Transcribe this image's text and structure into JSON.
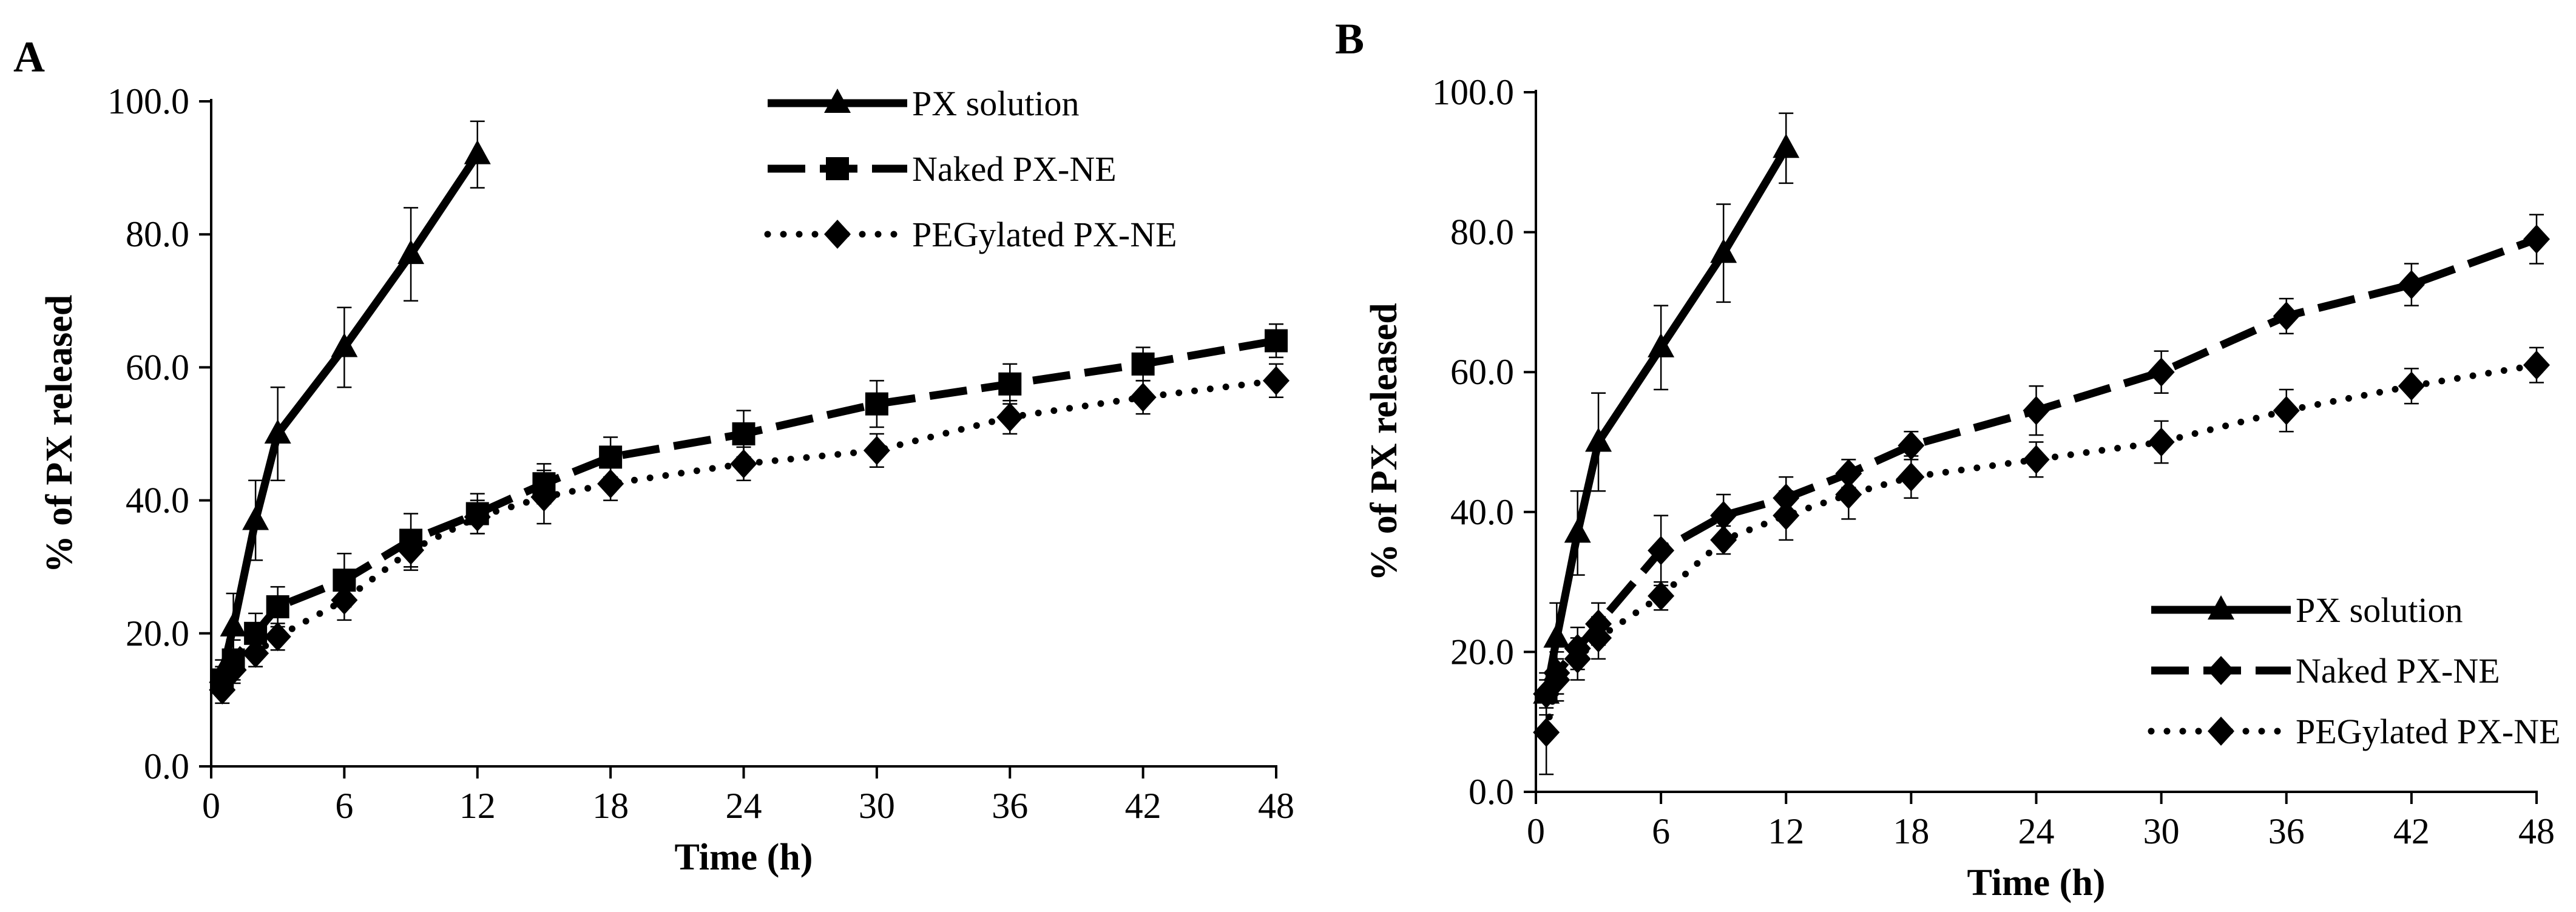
{
  "chart_data": [
    {
      "panel": "A",
      "type": "line",
      "xlabel": "Time (h)",
      "ylabel": "% of PX released",
      "xlim": [
        0,
        48
      ],
      "ylim": [
        0,
        100
      ],
      "x_ticks": [
        "0",
        "6",
        "12",
        "18",
        "24",
        "30",
        "36",
        "42",
        "48"
      ],
      "y_ticks": [
        "0.0",
        "20.0",
        "40.0",
        "60.0",
        "80.0",
        "100.0"
      ],
      "grid": false,
      "legend_position": "top-right",
      "series": [
        {
          "name": "PX solution",
          "marker": "triangle",
          "line_style": "solid",
          "x": [
            0.5,
            1,
            2,
            3,
            6,
            9,
            12
          ],
          "y": [
            14,
            21,
            37,
            50,
            63,
            77,
            92
          ],
          "err": [
            2,
            5,
            6,
            7,
            6,
            7,
            5
          ]
        },
        {
          "name": "Naked PX-NE",
          "marker": "square",
          "line_style": "dashed",
          "x": [
            0.5,
            1,
            2,
            3,
            6,
            9,
            12,
            15,
            18,
            24,
            30,
            36,
            42,
            48
          ],
          "y": [
            13,
            16,
            20,
            24,
            28,
            34,
            38,
            42.5,
            46.5,
            50,
            54.5,
            57.5,
            60.5,
            64
          ],
          "err": [
            2,
            3,
            3,
            3,
            4,
            4,
            3,
            3,
            3,
            3.5,
            3.5,
            3,
            2.5,
            2.5
          ]
        },
        {
          "name": "PEGylated PX-NE",
          "marker": "diamond",
          "line_style": "dotted",
          "x": [
            0.5,
            1,
            2,
            3,
            6,
            9,
            12,
            15,
            18,
            24,
            30,
            36,
            42,
            48
          ],
          "y": [
            11.5,
            14.5,
            17,
            19.5,
            25,
            32.5,
            37.5,
            40.5,
            42.5,
            45.5,
            47.5,
            52.5,
            55.5,
            58
          ],
          "err": [
            2,
            2,
            2,
            2,
            3,
            3,
            2.5,
            4,
            2.5,
            2.5,
            2.5,
            2.5,
            2.5,
            2.5
          ]
        }
      ]
    },
    {
      "panel": "B",
      "type": "line",
      "xlabel": "Time (h)",
      "ylabel": "% of PX released",
      "xlim": [
        0,
        48
      ],
      "ylim": [
        0,
        100
      ],
      "x_ticks": [
        "0",
        "6",
        "12",
        "18",
        "24",
        "30",
        "36",
        "42",
        "48"
      ],
      "y_ticks": [
        "0.0",
        "20.0",
        "40.0",
        "60.0",
        "80.0",
        "100.0"
      ],
      "grid": false,
      "legend_position": "bottom-right",
      "series": [
        {
          "name": "PX solution",
          "marker": "triangle",
          "line_style": "solid",
          "x": [
            0.5,
            1,
            2,
            3,
            6,
            9,
            12
          ],
          "y": [
            14,
            22,
            37,
            50,
            63.5,
            77,
            92
          ],
          "err": [
            2,
            5,
            6,
            7,
            6,
            7,
            5
          ]
        },
        {
          "name": "Naked PX-NE",
          "marker": "diamond",
          "line_style": "dashed",
          "x": [
            0.5,
            1,
            2,
            3,
            6,
            9,
            12,
            15,
            18,
            24,
            30,
            36,
            42,
            48
          ],
          "y": [
            14,
            17,
            20.5,
            24,
            34.5,
            39.5,
            42,
            45.5,
            49.5,
            54.5,
            60,
            68,
            72.5,
            79
          ],
          "err": [
            3,
            3,
            3,
            3,
            5,
            3,
            3,
            2,
            2,
            3.5,
            3,
            2.5,
            3,
            3.5
          ]
        },
        {
          "name": "PEGylated PX-NE",
          "marker": "diamond",
          "line_style": "dotted",
          "x": [
            0.5,
            1,
            2,
            3,
            6,
            9,
            12,
            15,
            18,
            24,
            30,
            36,
            42,
            48
          ],
          "y": [
            8.5,
            16,
            19,
            22,
            28,
            36,
            39.5,
            42.5,
            45,
            47.5,
            50,
            54.5,
            58,
            61
          ],
          "err": [
            6,
            3,
            3,
            3,
            2,
            2,
            3.5,
            3.5,
            3,
            2.5,
            3,
            3,
            2.5,
            2.5
          ]
        }
      ]
    }
  ]
}
